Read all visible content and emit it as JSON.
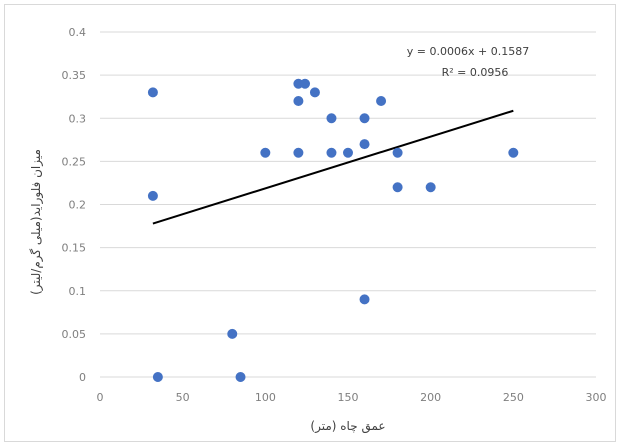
{
  "chart_data": {
    "type": "scatter",
    "xlabel": "عمق چاه (متر)",
    "ylabel": "میزان فلوراید(میلی گرم/لیتر)",
    "xlim": [
      0,
      300
    ],
    "ylim": [
      0,
      0.4
    ],
    "x_ticks": [
      "0",
      "50",
      "100",
      "150",
      "200",
      "250",
      "300"
    ],
    "y_ticks": [
      "0",
      "0.05",
      "0.1",
      "0.15",
      "0.2",
      "0.25",
      "0.3",
      "0.35",
      "0.4"
    ],
    "grid": "horizontal",
    "points": [
      {
        "x": 32,
        "y": 0.33
      },
      {
        "x": 32,
        "y": 0.21
      },
      {
        "x": 35,
        "y": 0
      },
      {
        "x": 80,
        "y": 0.05
      },
      {
        "x": 85,
        "y": 0
      },
      {
        "x": 100,
        "y": 0.26
      },
      {
        "x": 120,
        "y": 0.34
      },
      {
        "x": 124,
        "y": 0.34
      },
      {
        "x": 120,
        "y": 0.32
      },
      {
        "x": 130,
        "y": 0.33
      },
      {
        "x": 120,
        "y": 0.26
      },
      {
        "x": 140,
        "y": 0.3
      },
      {
        "x": 140,
        "y": 0.26
      },
      {
        "x": 150,
        "y": 0.26
      },
      {
        "x": 160,
        "y": 0.3
      },
      {
        "x": 160,
        "y": 0.27
      },
      {
        "x": 160,
        "y": 0.09
      },
      {
        "x": 170,
        "y": 0.32
      },
      {
        "x": 180,
        "y": 0.26
      },
      {
        "x": 180,
        "y": 0.22
      },
      {
        "x": 200,
        "y": 0.22
      },
      {
        "x": 250,
        "y": 0.26
      }
    ],
    "trendline": {
      "slope": 0.0006,
      "intercept": 0.1587,
      "x_range": [
        32,
        250
      ],
      "equation": "y = 0.0006x + 0.1587",
      "r_squared": "R² = 0.0956"
    },
    "colors": {
      "points": "#4472c4",
      "trendline": "#000000",
      "grid": "#d9d9d9"
    }
  }
}
